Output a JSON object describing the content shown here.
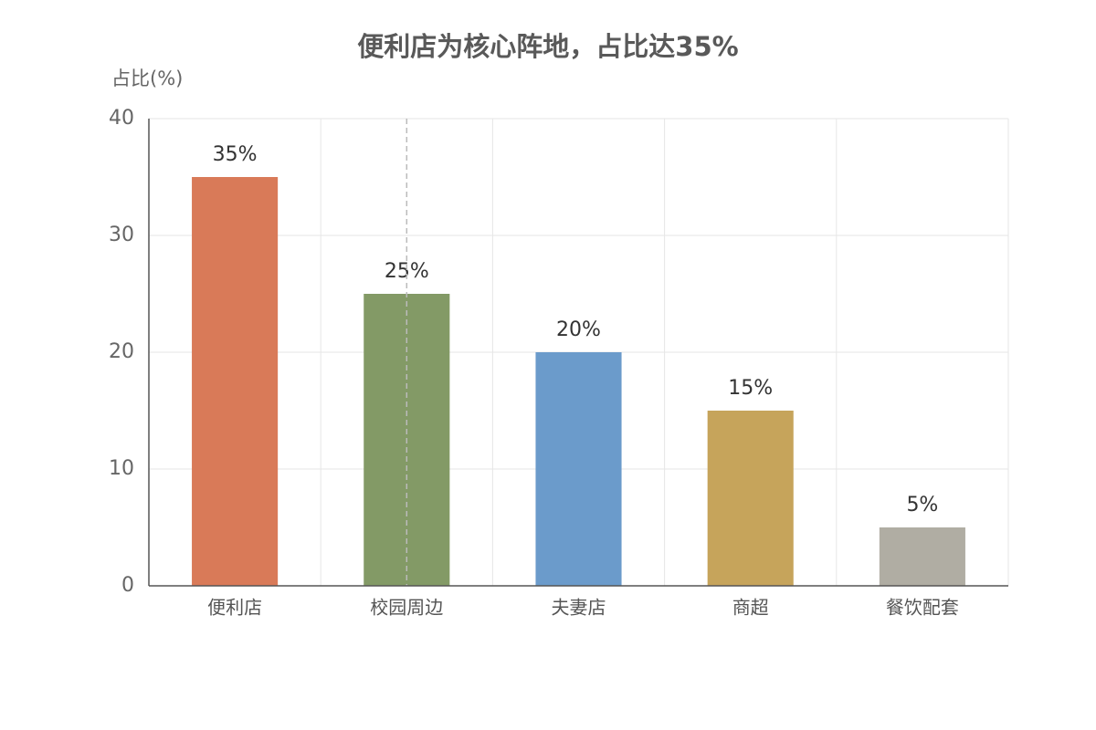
{
  "chart_data": {
    "type": "bar",
    "title": "便利店为核心阵地，占比达35%",
    "y_label": "占比(%)",
    "categories": [
      "便利店",
      "校园周边",
      "夫妻店",
      "商超",
      "餐饮配套"
    ],
    "values": [
      35,
      25,
      20,
      15,
      5
    ],
    "value_labels": [
      "35%",
      "25%",
      "20%",
      "15%",
      "5%"
    ],
    "colors": [
      "#d97a58",
      "#839a66",
      "#6b9bcb",
      "#c6a45b",
      "#b0ada3"
    ],
    "ylim": [
      0,
      40
    ],
    "yticks": [
      0,
      10,
      20,
      30,
      40
    ],
    "grid": true
  }
}
